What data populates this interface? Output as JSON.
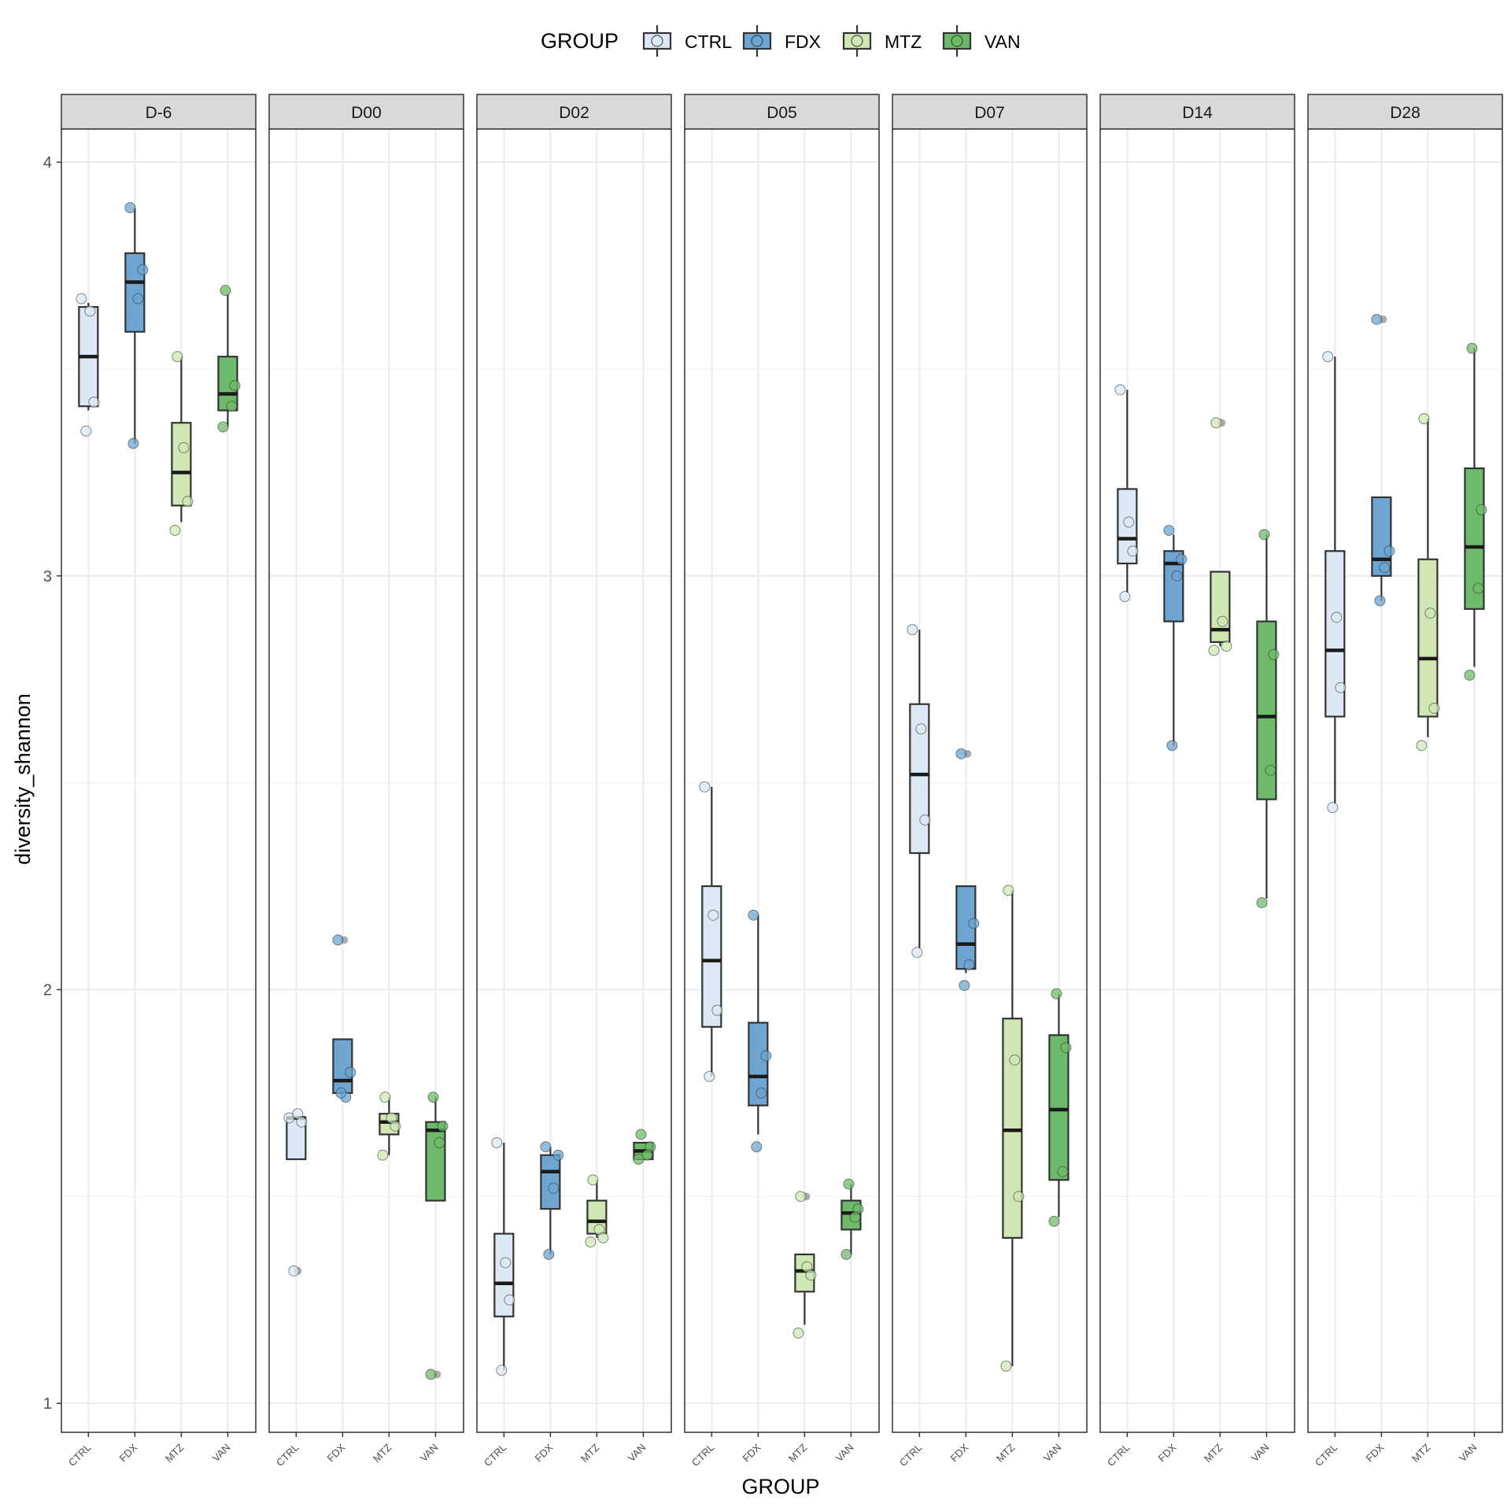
{
  "chart_data": {
    "type": "boxplot",
    "title": "",
    "xlabel": "GROUP",
    "ylabel": "diversity_shannon",
    "ylim": [
      0.93,
      4.08
    ],
    "y_ticks": [
      "1",
      "2",
      "3",
      "4"
    ],
    "grid": true,
    "legend": {
      "title": "GROUP",
      "position": "top",
      "entries": [
        "CTRL",
        "FDX",
        "MTZ",
        "VAN"
      ]
    },
    "colors": {
      "CTRL": "#dbe8f5",
      "FDX": "#6ea5d2",
      "MTZ": "#cfe8b3",
      "VAN": "#6dbb6a"
    },
    "categories": [
      "CTRL",
      "FDX",
      "MTZ",
      "VAN"
    ],
    "panels": [
      {
        "label": "D-6",
        "groups": [
          {
            "group": "CTRL",
            "box": {
              "lower": 3.4,
              "q1": 3.41,
              "median": 3.53,
              "q3": 3.65,
              "upper": 3.66
            },
            "points": [
              3.67,
              3.64,
              3.42,
              3.35
            ]
          },
          {
            "group": "FDX",
            "box": {
              "lower": 3.32,
              "q1": 3.59,
              "median": 3.71,
              "q3": 3.78,
              "upper": 3.89
            },
            "points": [
              3.89,
              3.74,
              3.67,
              3.32
            ]
          },
          {
            "group": "MTZ",
            "box": {
              "lower": 3.13,
              "q1": 3.17,
              "median": 3.25,
              "q3": 3.37,
              "upper": 3.53
            },
            "points": [
              3.53,
              3.31,
              3.18,
              3.11
            ]
          },
          {
            "group": "VAN",
            "box": {
              "lower": 3.36,
              "q1": 3.4,
              "median": 3.44,
              "q3": 3.53,
              "upper": 3.68
            },
            "points": [
              3.69,
              3.46,
              3.41,
              3.36
            ]
          }
        ]
      },
      {
        "label": "D00",
        "groups": [
          {
            "group": "CTRL",
            "box": {
              "lower": 1.59,
              "q1": 1.59,
              "median": 1.69,
              "q3": 1.69,
              "upper": 1.69
            },
            "points": [
              1.69,
              1.7,
              1.68,
              1.32
            ],
            "outliers": [
              1.32
            ]
          },
          {
            "group": "FDX",
            "box": {
              "lower": 1.75,
              "q1": 1.75,
              "median": 1.78,
              "q3": 1.88,
              "upper": 1.88
            },
            "points": [
              2.12,
              1.8,
              1.74,
              1.75
            ],
            "outliers": [
              2.12
            ]
          },
          {
            "group": "MTZ",
            "box": {
              "lower": 1.6,
              "q1": 1.65,
              "median": 1.68,
              "q3": 1.7,
              "upper": 1.74
            },
            "points": [
              1.74,
              1.69,
              1.67,
              1.6
            ]
          },
          {
            "group": "VAN",
            "box": {
              "lower": 1.49,
              "q1": 1.49,
              "median": 1.66,
              "q3": 1.68,
              "upper": 1.74
            },
            "points": [
              1.74,
              1.67,
              1.63,
              1.07
            ],
            "outliers": [
              1.07
            ]
          }
        ]
      },
      {
        "label": "D02",
        "groups": [
          {
            "group": "CTRL",
            "box": {
              "lower": 1.08,
              "q1": 1.21,
              "median": 1.29,
              "q3": 1.41,
              "upper": 1.63
            },
            "points": [
              1.63,
              1.34,
              1.25,
              1.08
            ]
          },
          {
            "group": "FDX",
            "box": {
              "lower": 1.36,
              "q1": 1.47,
              "median": 1.56,
              "q3": 1.6,
              "upper": 1.62
            },
            "points": [
              1.62,
              1.6,
              1.52,
              1.36
            ]
          },
          {
            "group": "MTZ",
            "box": {
              "lower": 1.4,
              "q1": 1.41,
              "median": 1.44,
              "q3": 1.49,
              "upper": 1.54
            },
            "points": [
              1.54,
              1.42,
              1.4,
              1.39
            ]
          },
          {
            "group": "VAN",
            "box": {
              "lower": 1.59,
              "q1": 1.59,
              "median": 1.61,
              "q3": 1.63,
              "upper": 1.63
            },
            "points": [
              1.65,
              1.62,
              1.6,
              1.59
            ]
          }
        ]
      },
      {
        "label": "D05",
        "groups": [
          {
            "group": "CTRL",
            "box": {
              "lower": 1.79,
              "q1": 1.91,
              "median": 2.07,
              "q3": 2.25,
              "upper": 2.49
            },
            "points": [
              2.49,
              2.18,
              1.95,
              1.79
            ]
          },
          {
            "group": "FDX",
            "box": {
              "lower": 1.65,
              "q1": 1.72,
              "median": 1.79,
              "q3": 1.92,
              "upper": 2.18
            },
            "points": [
              2.18,
              1.84,
              1.75,
              1.62
            ]
          },
          {
            "group": "MTZ",
            "box": {
              "lower": 1.19,
              "q1": 1.27,
              "median": 1.32,
              "q3": 1.36,
              "upper": 1.36
            },
            "points": [
              1.5,
              1.33,
              1.31,
              1.17
            ],
            "outliers": [
              1.5
            ]
          },
          {
            "group": "VAN",
            "box": {
              "lower": 1.36,
              "q1": 1.42,
              "median": 1.46,
              "q3": 1.49,
              "upper": 1.53
            },
            "points": [
              1.53,
              1.47,
              1.45,
              1.36
            ]
          }
        ]
      },
      {
        "label": "D07",
        "groups": [
          {
            "group": "CTRL",
            "box": {
              "lower": 2.1,
              "q1": 2.33,
              "median": 2.52,
              "q3": 2.69,
              "upper": 2.87
            },
            "points": [
              2.87,
              2.63,
              2.41,
              2.09
            ]
          },
          {
            "group": "FDX",
            "box": {
              "lower": 2.04,
              "q1": 2.05,
              "median": 2.11,
              "q3": 2.25,
              "upper": 2.25
            },
            "points": [
              2.57,
              2.16,
              2.06,
              2.01
            ],
            "outliers": [
              2.57
            ]
          },
          {
            "group": "MTZ",
            "box": {
              "lower": 1.09,
              "q1": 1.4,
              "median": 1.66,
              "q3": 1.93,
              "upper": 2.24
            },
            "points": [
              2.24,
              1.83,
              1.5,
              1.09
            ]
          },
          {
            "group": "VAN",
            "box": {
              "lower": 1.45,
              "q1": 1.54,
              "median": 1.71,
              "q3": 1.89,
              "upper": 1.99
            },
            "points": [
              1.99,
              1.86,
              1.56,
              1.44
            ]
          }
        ]
      },
      {
        "label": "D14",
        "groups": [
          {
            "group": "CTRL",
            "box": {
              "lower": 2.96,
              "q1": 3.03,
              "median": 3.09,
              "q3": 3.21,
              "upper": 3.45
            },
            "points": [
              3.45,
              3.13,
              3.06,
              2.95
            ]
          },
          {
            "group": "FDX",
            "box": {
              "lower": 2.59,
              "q1": 2.89,
              "median": 3.03,
              "q3": 3.06,
              "upper": 3.1
            },
            "points": [
              3.11,
              3.04,
              3.0,
              2.59
            ]
          },
          {
            "group": "MTZ",
            "box": {
              "lower": 2.83,
              "q1": 2.84,
              "median": 2.87,
              "q3": 3.01,
              "upper": 3.01
            },
            "points": [
              3.37,
              2.89,
              2.83,
              2.82
            ],
            "outliers": [
              3.37
            ]
          },
          {
            "group": "VAN",
            "box": {
              "lower": 2.22,
              "q1": 2.46,
              "median": 2.66,
              "q3": 2.89,
              "upper": 3.1
            },
            "points": [
              3.1,
              2.81,
              2.53,
              2.21
            ]
          }
        ]
      },
      {
        "label": "D28",
        "groups": [
          {
            "group": "CTRL",
            "box": {
              "lower": 2.45,
              "q1": 2.66,
              "median": 2.82,
              "q3": 3.06,
              "upper": 3.53
            },
            "points": [
              3.53,
              2.9,
              2.73,
              2.44
            ]
          },
          {
            "group": "FDX",
            "box": {
              "lower": 2.94,
              "q1": 3.0,
              "median": 3.04,
              "q3": 3.19,
              "upper": 3.19
            },
            "points": [
              3.62,
              3.06,
              3.02,
              2.94
            ],
            "outliers": [
              3.62
            ]
          },
          {
            "group": "MTZ",
            "box": {
              "lower": 2.61,
              "q1": 2.66,
              "median": 2.8,
              "q3": 3.04,
              "upper": 3.38
            },
            "points": [
              3.38,
              2.91,
              2.68,
              2.59
            ]
          },
          {
            "group": "VAN",
            "box": {
              "lower": 2.78,
              "q1": 2.92,
              "median": 3.07,
              "q3": 3.26,
              "upper": 3.55
            },
            "points": [
              3.55,
              3.16,
              2.97,
              2.76
            ]
          }
        ]
      }
    ]
  }
}
